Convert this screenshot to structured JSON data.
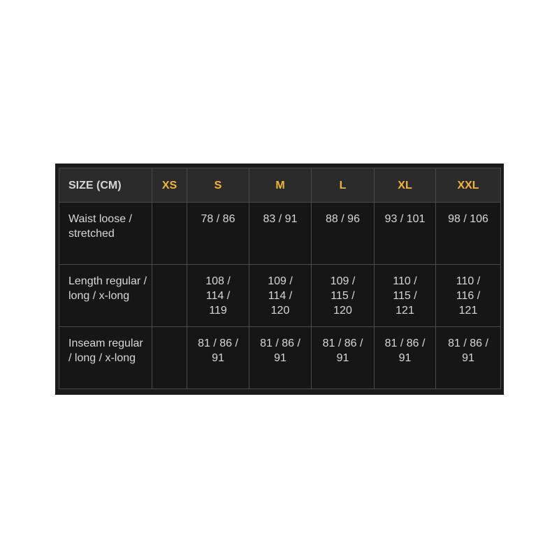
{
  "header": {
    "label": "SIZE (CM)",
    "sizes": [
      "XS",
      "S",
      "M",
      "L",
      "XL",
      "XXL"
    ]
  },
  "rows": [
    {
      "label": "Waist loose / stretched",
      "values": [
        "",
        "78 / 86",
        "83 / 91",
        "88 / 96",
        "93 / 101",
        "98 / 106"
      ]
    },
    {
      "label": "Length regular / long / x-long",
      "values": [
        "",
        "108 / 114 / 119",
        "109 / 114 / 120",
        "109 / 115 / 120",
        "110 / 115 / 121",
        "110 / 116 / 121"
      ]
    },
    {
      "label": "Inseam regular / long / x-long",
      "values": [
        "",
        "81 / 86 / 91",
        "81 / 86 / 91",
        "81 / 86 / 91",
        "81 / 86 / 91",
        "81 / 86 / 91"
      ]
    }
  ],
  "colors": {
    "accent": "#f2b531",
    "header_bg": "#2b2b2b",
    "body_bg": "#161616",
    "border": "#4a4a4a"
  }
}
